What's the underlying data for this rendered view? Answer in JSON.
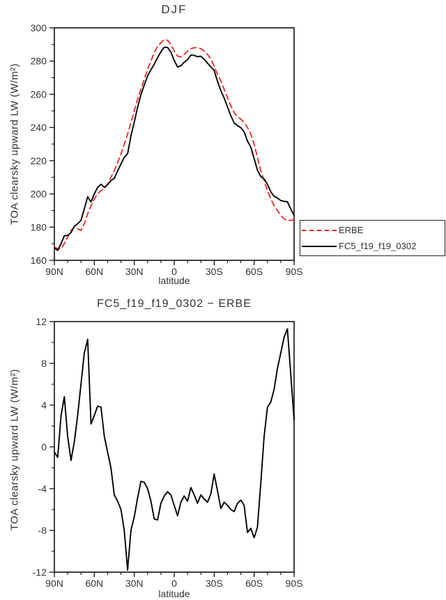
{
  "page": {
    "background": "#ffffff",
    "text_color": "#333333",
    "frame_color": "#111111"
  },
  "legend": {
    "entries": [
      "ERBE",
      "FC5_f19_f19_0302"
    ]
  },
  "chart_data": [
    {
      "type": "line",
      "title": "DJF",
      "xlabel": "latitude",
      "ylabel": "TOA clearsky upward LW (W/m²)",
      "xlim": [
        90,
        -90
      ],
      "ylim": [
        160,
        300
      ],
      "xticks": {
        "values": [
          90,
          60,
          30,
          0,
          -30,
          -60,
          -90
        ],
        "labels": [
          "90N",
          "60N",
          "30N",
          "0",
          "30S",
          "60S",
          "90S"
        ]
      },
      "xtick_minor_step": 10,
      "yticks": [
        160,
        180,
        200,
        220,
        240,
        260,
        280,
        300
      ],
      "ytick_minor_step": 10,
      "grid": false,
      "legend_position": "outside-right",
      "x": [
        90,
        87.5,
        85,
        82.5,
        80,
        77.5,
        75,
        72.5,
        70,
        67.5,
        65,
        62.5,
        60,
        57.5,
        55,
        52.5,
        50,
        47.5,
        45,
        42.5,
        40,
        37.5,
        35,
        32.5,
        30,
        27.5,
        25,
        22.5,
        20,
        17.5,
        15,
        12.5,
        10,
        7.5,
        5,
        2.5,
        0,
        -2.5,
        -5,
        -7.5,
        -10,
        -12.5,
        -15,
        -17.5,
        -20,
        -22.5,
        -25,
        -27.5,
        -30,
        -32.5,
        -35,
        -37.5,
        -40,
        -42.5,
        -45,
        -47.5,
        -50,
        -52.5,
        -55,
        -57.5,
        -60,
        -62.5,
        -65,
        -67.5,
        -70,
        -72.5,
        -75,
        -77.5,
        -80,
        -82.5,
        -85,
        -87.5,
        -90
      ],
      "series": [
        {
          "name": "ERBE",
          "color": "#ee1111",
          "style": "dashed",
          "values": [
            168,
            167,
            167,
            170,
            174,
            178,
            180,
            179,
            178,
            182,
            188,
            193,
            197,
            200,
            202,
            203,
            206,
            210,
            214,
            219,
            224,
            230,
            236,
            243,
            250,
            257,
            263,
            269,
            275,
            280,
            285,
            289,
            291,
            293,
            292.5,
            290,
            286,
            283,
            282.5,
            284,
            286,
            287.5,
            288,
            288,
            287.5,
            286,
            284,
            281,
            277,
            272,
            268,
            263,
            258,
            253,
            249,
            246.5,
            245,
            243,
            240,
            236,
            230,
            222,
            214,
            208,
            202,
            197,
            193,
            190,
            187,
            185,
            184,
            184,
            184.5
          ]
        },
        {
          "name": "FC5_f19_f19_0302",
          "color": "#000000",
          "style": "solid",
          "values": [
            167.5,
            166,
            170,
            174.8,
            175,
            176.7,
            180.5,
            182,
            184,
            191,
            198.3,
            195.2,
            200,
            203.9,
            205.8,
            204,
            205.5,
            208,
            209.4,
            213.8,
            218,
            222,
            224.2,
            235,
            243.3,
            252.1,
            259.7,
            265.6,
            271,
            274.8,
            278.1,
            282,
            285.6,
            288.3,
            288.2,
            285.4,
            280.4,
            276.4,
            277.2,
            279.3,
            280.8,
            283.6,
            283.4,
            282.6,
            282.9,
            281,
            278.7,
            276.5,
            274.4,
            267.8,
            262.1,
            257.7,
            252.4,
            247,
            242.8,
            241.1,
            239.9,
            237.4,
            231.8,
            228.2,
            221.3,
            214.3,
            210.5,
            209,
            205.8,
            201.3,
            198.5,
            197.5,
            196,
            195.5,
            195.3,
            191,
            187.1
          ]
        }
      ]
    },
    {
      "type": "line",
      "title": "FC5_f19_f19_0302 − ERBE",
      "xlabel": "latitude",
      "ylabel": "TOA clearsky upward LW (W/m²)",
      "xlim": [
        90,
        -90
      ],
      "ylim": [
        -12,
        12
      ],
      "xticks": {
        "values": [
          90,
          60,
          30,
          0,
          -30,
          -60,
          -90
        ],
        "labels": [
          "90N",
          "60N",
          "30N",
          "0",
          "30S",
          "60S",
          "90S"
        ]
      },
      "xtick_minor_step": 10,
      "yticks": [
        -12,
        -8,
        -4,
        0,
        4,
        8,
        12
      ],
      "ytick_minor_step": 2,
      "grid": false,
      "x": [
        90,
        87.5,
        85,
        82.5,
        80,
        77.5,
        75,
        72.5,
        70,
        67.5,
        65,
        62.5,
        60,
        57.5,
        55,
        52.5,
        50,
        47.5,
        45,
        42.5,
        40,
        37.5,
        35,
        32.5,
        30,
        27.5,
        25,
        22.5,
        20,
        17.5,
        15,
        12.5,
        10,
        7.5,
        5,
        2.5,
        0,
        -2.5,
        -5,
        -7.5,
        -10,
        -12.5,
        -15,
        -17.5,
        -20,
        -22.5,
        -25,
        -27.5,
        -30,
        -32.5,
        -35,
        -37.5,
        -40,
        -42.5,
        -45,
        -47.5,
        -50,
        -52.5,
        -55,
        -57.5,
        -60,
        -62.5,
        -65,
        -67.5,
        -70,
        -72.5,
        -75,
        -77.5,
        -80,
        -82.5,
        -85,
        -87.5,
        -90
      ],
      "series": [
        {
          "name": "FC5_f19_f19_0302 − ERBE",
          "color": "#000000",
          "style": "solid",
          "values": [
            -0.5,
            -1,
            3,
            4.8,
            1,
            -1.3,
            0.5,
            3,
            6,
            9,
            10.3,
            2.2,
            3,
            3.9,
            3.8,
            1,
            -0.5,
            -2,
            -4.6,
            -5.2,
            -6,
            -8,
            -11.8,
            -8,
            -6.7,
            -4.9,
            -3.3,
            -3.4,
            -4,
            -5.2,
            -6.9,
            -7,
            -5.4,
            -4.7,
            -4.3,
            -4.6,
            -5.6,
            -6.6,
            -5.3,
            -4.7,
            -5.2,
            -3.9,
            -4.6,
            -5.4,
            -4.6,
            -5,
            -5.3,
            -4.5,
            -2.6,
            -4.2,
            -5.9,
            -5.3,
            -5.6,
            -6,
            -6.2,
            -5.4,
            -5.1,
            -5.6,
            -8.2,
            -7.8,
            -8.7,
            -7.7,
            -3.5,
            1,
            3.8,
            4.3,
            5.5,
            7.5,
            9,
            10.5,
            11.3,
            7,
            2.6
          ]
        }
      ]
    }
  ]
}
